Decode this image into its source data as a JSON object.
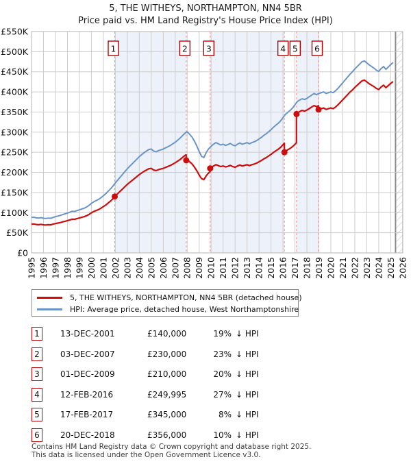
{
  "title": "5, THE WITHEYS, NORTHAMPTON, NN4 5BR",
  "subtitle": "Price paid vs. HM Land Registry's House Price Index (HPI)",
  "colors": {
    "property_line": "#cc0e0e",
    "hpi_line": "#6a94c8",
    "sale_vline": "#f08f8f",
    "ownership_band": "#edf1f9",
    "grid": "#cdcdcd",
    "frame": "#b5b5b5",
    "marker_box_border": "#b30000",
    "hatch": "#c4c8cf",
    "hatch_edge": "#8a8a8a",
    "dot": "#cc0e0e"
  },
  "chart_data": {
    "type": "line",
    "title": "5, THE WITHEYS, NORTHAMPTON, NN4 5BR",
    "subtitle": "Price paid vs. HM Land Registry's House Price Index (HPI)",
    "xlim": [
      1995,
      2026
    ],
    "ylim_gbp": [
      0,
      550000
    ],
    "grid": true,
    "y_tick_labels": [
      "£0",
      "£50K",
      "£100K",
      "£150K",
      "£200K",
      "£250K",
      "£300K",
      "£350K",
      "£400K",
      "£450K",
      "£500K",
      "£550K"
    ],
    "x_tick_labels": [
      "1995",
      "1996",
      "1997",
      "1998",
      "1999",
      "2000",
      "2001",
      "2002",
      "2003",
      "2004",
      "2005",
      "2006",
      "2007",
      "2008",
      "2009",
      "2010",
      "2011",
      "2012",
      "2013",
      "2014",
      "2015",
      "2016",
      "2017",
      "2018",
      "2019",
      "2020",
      "2021",
      "2022",
      "2023",
      "2024",
      "2025",
      "2026"
    ],
    "hpi_series": {
      "name": "HPI: Average price, detached house, West Northamptonshire",
      "unit": "GBP thousands",
      "x_start": 1995.0,
      "x_step": 0.2,
      "values_k": [
        88,
        88.5,
        87,
        86.5,
        87.5,
        86,
        85.5,
        86.5,
        86,
        88,
        90,
        91.5,
        93,
        95,
        97,
        99,
        101,
        103.5,
        103,
        105,
        107,
        109,
        111,
        114,
        118,
        123,
        127,
        130,
        133,
        137,
        142,
        147,
        153,
        159,
        166,
        174,
        181,
        188,
        195,
        202,
        209,
        215,
        221,
        227,
        233,
        239,
        244,
        249,
        253,
        257,
        258,
        253,
        251,
        254,
        256,
        258,
        261,
        264,
        267,
        271,
        275,
        280,
        285,
        291,
        297,
        301,
        295,
        288,
        278,
        266,
        252,
        240,
        237,
        250,
        259,
        265,
        270,
        274,
        271,
        268,
        270,
        267,
        269,
        272,
        268,
        266,
        270,
        273,
        270,
        272,
        274,
        271,
        274,
        276,
        279,
        283,
        287,
        292,
        296,
        301,
        306,
        312,
        317,
        322,
        328,
        336,
        344,
        349,
        354,
        360,
        368,
        376,
        380,
        383,
        381,
        384,
        388,
        392,
        396,
        393,
        396,
        398,
        400,
        396,
        398,
        400,
        398,
        403,
        409,
        416,
        423,
        430,
        437,
        444,
        450,
        457,
        463,
        469,
        475,
        477,
        472,
        467,
        463,
        459,
        454,
        451,
        458,
        463,
        456,
        462,
        468,
        473
      ]
    },
    "property_series": {
      "name": "5, THE WITHEYS, NORTHAMPTON, NN4 5BR (detached house)",
      "rule": "between sales the line is the previous sale price indexed by the HPI series; vertical step at each sale",
      "pre_sale_ratio": 0.81
    },
    "sales": [
      {
        "num": "1",
        "date": "13-DEC-2001",
        "x": 2001.95,
        "price_k": 140,
        "pct_vs_hpi": "19% below"
      },
      {
        "num": "2",
        "date": "03-DEC-2007",
        "x": 2007.92,
        "price_k": 230,
        "pct_vs_hpi": "23% below"
      },
      {
        "num": "3",
        "date": "01-DEC-2009",
        "x": 2009.92,
        "price_k": 210,
        "pct_vs_hpi": "20% below"
      },
      {
        "num": "4",
        "date": "12-FEB-2016",
        "x": 2016.12,
        "price_k": 250,
        "pct_vs_hpi": "27% below"
      },
      {
        "num": "5",
        "date": "17-FEB-2017",
        "x": 2017.13,
        "price_k": 345,
        "pct_vs_hpi": "8% below"
      },
      {
        "num": "6",
        "date": "20-DEC-2018",
        "x": 2018.97,
        "price_k": 356,
        "pct_vs_hpi": "10% below"
      }
    ],
    "ownership_bands": [
      [
        2001.95,
        2007.92
      ],
      [
        2009.92,
        2016.12
      ],
      [
        2017.13,
        2018.97
      ]
    ],
    "hatch_start": 2025.4,
    "legend_position": "below"
  },
  "legend": {
    "items": [
      {
        "label": "5, THE WITHEYS, NORTHAMPTON, NN4 5BR (detached house)",
        "color": "#cc0e0e"
      },
      {
        "label": "HPI: Average price, detached house, West Northamptonshire",
        "color": "#6a94c8"
      }
    ]
  },
  "table": {
    "rows": [
      {
        "num": "1",
        "date": "13-DEC-2001",
        "price": "£140,000",
        "pct": "19%",
        "hpi": "↓ HPI"
      },
      {
        "num": "2",
        "date": "03-DEC-2007",
        "price": "£230,000",
        "pct": "23%",
        "hpi": "↓ HPI"
      },
      {
        "num": "3",
        "date": "01-DEC-2009",
        "price": "£210,000",
        "pct": "20%",
        "hpi": "↓ HPI"
      },
      {
        "num": "4",
        "date": "12-FEB-2016",
        "price": "£249,995",
        "pct": "27%",
        "hpi": "↓ HPI"
      },
      {
        "num": "5",
        "date": "17-FEB-2017",
        "price": "£345,000",
        "pct": "8%",
        "hpi": "↓ HPI"
      },
      {
        "num": "6",
        "date": "20-DEC-2018",
        "price": "£356,000",
        "pct": "10%",
        "hpi": "↓ HPI"
      }
    ]
  },
  "footer": {
    "line1": "Contains HM Land Registry data © Crown copyright and database right 2025.",
    "line2": "This data is licensed under the Open Government Licence v3.0."
  }
}
